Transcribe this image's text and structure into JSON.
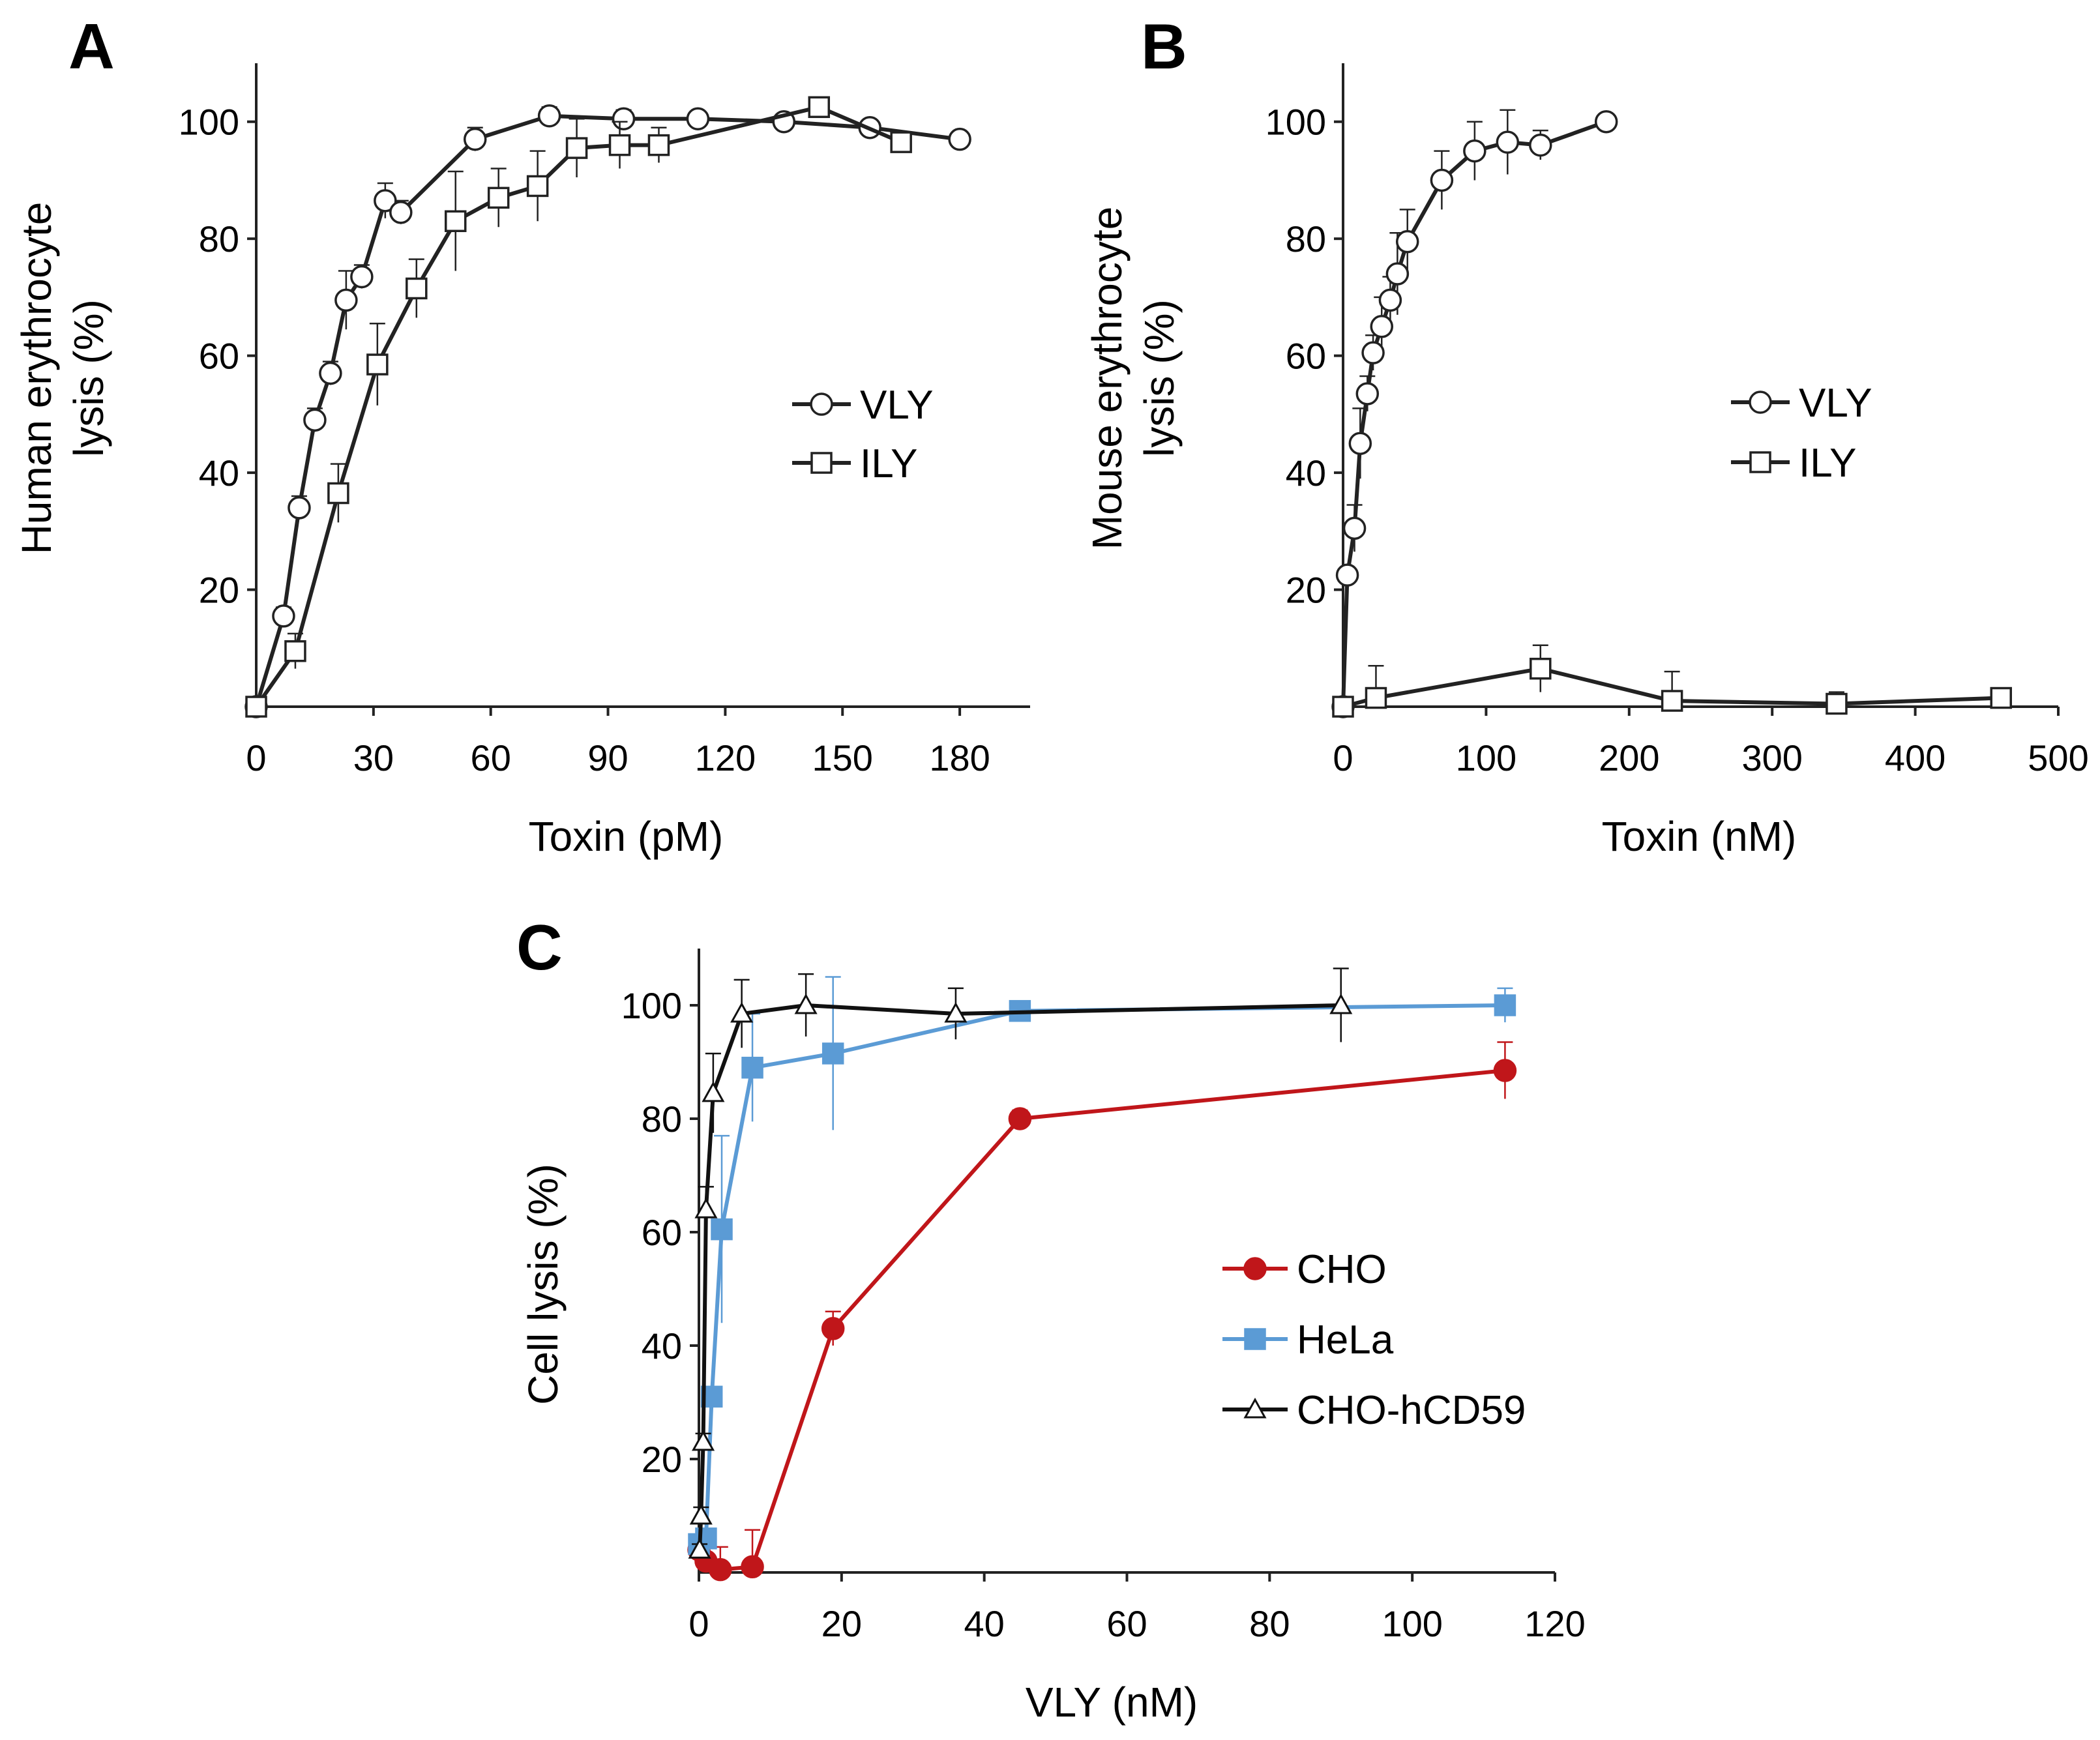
{
  "chart_data": [
    {
      "id": "A",
      "type": "line",
      "panel_label": "A",
      "xlabel": "Toxin (pM)",
      "ylabel_lines": [
        "Human erythrocyte",
        "lysis (%)"
      ],
      "xlim": [
        0,
        198
      ],
      "ylim": [
        0,
        110
      ],
      "xticks": [
        0,
        30,
        60,
        90,
        120,
        150,
        180
      ],
      "yticks": [
        20,
        40,
        60,
        80,
        100
      ],
      "legend_position": "right",
      "series": [
        {
          "name": "VLY",
          "marker": "circle",
          "fill": "#ffffff",
          "stroke": "#222222",
          "line_color": "#222222",
          "points": [
            {
              "x": 0,
              "y": 0,
              "err": 0
            },
            {
              "x": 7,
              "y": 15.5,
              "err": 1.5
            },
            {
              "x": 11,
              "y": 34,
              "err": 2
            },
            {
              "x": 15,
              "y": 49,
              "err": 2
            },
            {
              "x": 19,
              "y": 57,
              "err": 2
            },
            {
              "x": 23,
              "y": 69.5,
              "err": 5
            },
            {
              "x": 27,
              "y": 73.5,
              "err": 2
            },
            {
              "x": 33,
              "y": 86.5,
              "err": 3
            },
            {
              "x": 37,
              "y": 84.5,
              "err": 2
            },
            {
              "x": 56,
              "y": 97,
              "err": 2
            },
            {
              "x": 75,
              "y": 101,
              "err": 1.5
            },
            {
              "x": 94,
              "y": 100.5,
              "err": 1.5
            },
            {
              "x": 113,
              "y": 100.5,
              "err": 1
            },
            {
              "x": 135,
              "y": 100,
              "err": 1
            },
            {
              "x": 157,
              "y": 99,
              "err": 1
            },
            {
              "x": 180,
              "y": 97,
              "err": 1
            }
          ]
        },
        {
          "name": "ILY",
          "marker": "square",
          "fill": "#ffffff",
          "stroke": "#222222",
          "line_color": "#222222",
          "points": [
            {
              "x": 0,
              "y": 0,
              "err": 0
            },
            {
              "x": 10,
              "y": 9.5,
              "err": 3
            },
            {
              "x": 21,
              "y": 36.5,
              "err": 5
            },
            {
              "x": 31,
              "y": 58.5,
              "err": 7
            },
            {
              "x": 41,
              "y": 71.5,
              "err": 5
            },
            {
              "x": 51,
              "y": 83,
              "err": 8.5
            },
            {
              "x": 62,
              "y": 87,
              "err": 5
            },
            {
              "x": 72,
              "y": 89,
              "err": 6
            },
            {
              "x": 82,
              "y": 95.5,
              "err": 5
            },
            {
              "x": 93,
              "y": 96,
              "err": 4
            },
            {
              "x": 103,
              "y": 96,
              "err": 3
            },
            {
              "x": 144,
              "y": 102.5,
              "err": 1
            },
            {
              "x": 165,
              "y": 96.5,
              "err": 1
            }
          ]
        }
      ]
    },
    {
      "id": "B",
      "type": "line",
      "panel_label": "B",
      "xlabel": "Toxin (nM)",
      "ylabel_lines": [
        "Mouse erythrocyte",
        "lysis (%)"
      ],
      "xlim": [
        0,
        500
      ],
      "ylim": [
        0,
        110
      ],
      "xticks": [
        0,
        100,
        200,
        300,
        400,
        500
      ],
      "yticks": [
        20,
        40,
        60,
        80,
        100
      ],
      "legend_position": "right",
      "series": [
        {
          "name": "VLY",
          "marker": "circle",
          "fill": "#ffffff",
          "stroke": "#222222",
          "line_color": "#222222",
          "points": [
            {
              "x": 0,
              "y": 0,
              "err": 0
            },
            {
              "x": 3,
              "y": 22.5,
              "err": 1
            },
            {
              "x": 8,
              "y": 30.5,
              "err": 4
            },
            {
              "x": 12,
              "y": 45,
              "err": 6
            },
            {
              "x": 17,
              "y": 53.5,
              "err": 3
            },
            {
              "x": 21,
              "y": 60.5,
              "err": 3
            },
            {
              "x": 27,
              "y": 65,
              "err": 5
            },
            {
              "x": 33,
              "y": 69.5,
              "err": 4
            },
            {
              "x": 38,
              "y": 74,
              "err": 7
            },
            {
              "x": 45,
              "y": 79.5,
              "err": 5.5
            },
            {
              "x": 69,
              "y": 90,
              "err": 5
            },
            {
              "x": 92,
              "y": 95,
              "err": 5
            },
            {
              "x": 115,
              "y": 96.5,
              "err": 5.5
            },
            {
              "x": 138,
              "y": 96,
              "err": 2.5
            },
            {
              "x": 184,
              "y": 100,
              "err": 1
            }
          ]
        },
        {
          "name": "ILY",
          "marker": "square",
          "fill": "#ffffff",
          "stroke": "#222222",
          "line_color": "#222222",
          "points": [
            {
              "x": 0,
              "y": 0,
              "err": 0
            },
            {
              "x": 23,
              "y": 1.5,
              "err": 5.5
            },
            {
              "x": 138,
              "y": 6.5,
              "err": 4
            },
            {
              "x": 230,
              "y": 1,
              "err": 5
            },
            {
              "x": 345,
              "y": 0.5,
              "err": 2
            },
            {
              "x": 460,
              "y": 1.5,
              "err": 1
            }
          ]
        }
      ]
    },
    {
      "id": "C",
      "type": "line",
      "panel_label": "C",
      "xlabel": "VLY (nM)",
      "ylabel_lines": [
        "Cell lysis (%)"
      ],
      "xlim": [
        0,
        120
      ],
      "ylim": [
        0,
        110
      ],
      "xticks": [
        0,
        20,
        40,
        60,
        80,
        100,
        120
      ],
      "yticks": [
        20,
        40,
        60,
        80,
        100
      ],
      "legend_position": "right",
      "series": [
        {
          "name": "CHO",
          "marker": "circle",
          "fill": "#c0161a",
          "stroke": "#c0161a",
          "line_color": "#c0161a",
          "points": [
            {
              "x": 0,
              "y": 4,
              "err": 1
            },
            {
              "x": 1,
              "y": 2,
              "err": 1
            },
            {
              "x": 3,
              "y": 0.5,
              "err": 4
            },
            {
              "x": 7.5,
              "y": 1,
              "err": 6.5
            },
            {
              "x": 18.8,
              "y": 43,
              "err": 3
            },
            {
              "x": 45,
              "y": 80,
              "err": 1.5
            },
            {
              "x": 113,
              "y": 88.5,
              "err": 5
            }
          ]
        },
        {
          "name": "HeLa",
          "marker": "square",
          "fill": "#5b9bd5",
          "stroke": "#5b9bd5",
          "line_color": "#5b9bd5",
          "points": [
            {
              "x": 0,
              "y": 5,
              "err": 1
            },
            {
              "x": 1,
              "y": 6,
              "err": 1
            },
            {
              "x": 1.8,
              "y": 31,
              "err": 1
            },
            {
              "x": 3.2,
              "y": 60.5,
              "err": 16.5
            },
            {
              "x": 7.5,
              "y": 89,
              "err": 9.5
            },
            {
              "x": 18.8,
              "y": 91.5,
              "err": 13.5
            },
            {
              "x": 45,
              "y": 99,
              "err": 1
            },
            {
              "x": 113,
              "y": 100,
              "err": 3
            }
          ]
        },
        {
          "name": "CHO-hCD59",
          "marker": "triangle",
          "fill": "#ffffff",
          "stroke": "#111111",
          "line_color": "#111111",
          "points": [
            {
              "x": 0.1,
              "y": 4,
              "err": 1
            },
            {
              "x": 0.3,
              "y": 10,
              "err": 1.5
            },
            {
              "x": 0.6,
              "y": 23,
              "err": 1.5
            },
            {
              "x": 1,
              "y": 64,
              "err": 4
            },
            {
              "x": 2,
              "y": 84.5,
              "err": 7
            },
            {
              "x": 6,
              "y": 98.5,
              "err": 6
            },
            {
              "x": 15,
              "y": 100,
              "err": 5.5
            },
            {
              "x": 36,
              "y": 98.5,
              "err": 4.5
            },
            {
              "x": 90,
              "y": 100,
              "err": 6.5
            }
          ]
        }
      ]
    }
  ]
}
